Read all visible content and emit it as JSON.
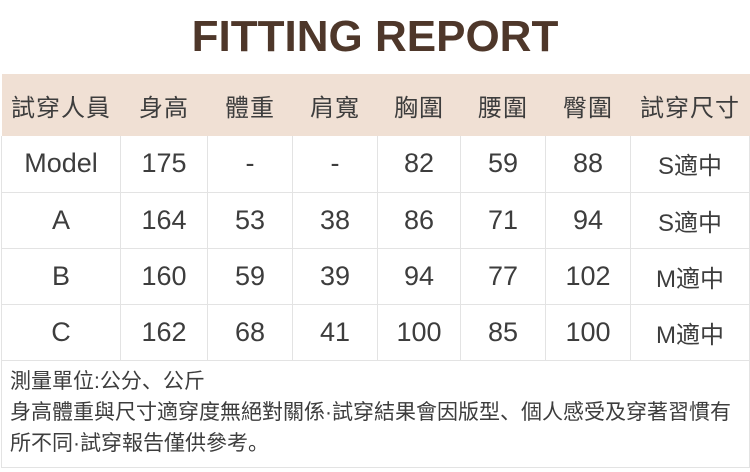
{
  "title": "FITTING REPORT",
  "table": {
    "headers": [
      "試穿人員",
      "身高",
      "體重",
      "肩寬",
      "胸圍",
      "腰圍",
      "臀圍",
      "試穿尺寸"
    ],
    "rows": [
      [
        "Model",
        "175",
        "-",
        "-",
        "82",
        "59",
        "88",
        "S適中"
      ],
      [
        "A",
        "164",
        "53",
        "38",
        "86",
        "71",
        "94",
        "S適中"
      ],
      [
        "B",
        "160",
        "59",
        "39",
        "94",
        "77",
        "102",
        "M適中"
      ],
      [
        "C",
        "162",
        "68",
        "41",
        "100",
        "85",
        "100",
        "M適中"
      ]
    ]
  },
  "notes": {
    "units": "測量單位:公分、公斤",
    "disclaimer": "身高體重與尺寸適穿度無絕對關係·試穿結果會因版型、個人感受及穿著習慣有所不同·試穿報告僅供參考。"
  },
  "colors": {
    "title_text": "#4e372a",
    "header_bg": "#f0e0d4",
    "body_text": "#3d3d3d",
    "border": "#e3e3e3"
  }
}
